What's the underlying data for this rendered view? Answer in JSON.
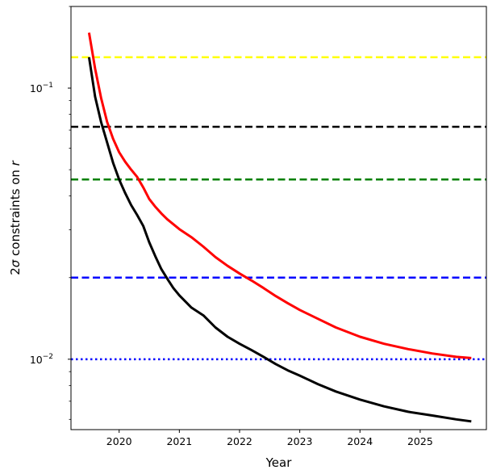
{
  "chart_data": {
    "type": "line",
    "title": "",
    "xlabel": "Year",
    "ylabel_prefix": "2",
    "ylabel_sigma": "σ",
    "ylabel_middle": " constraints on ",
    "ylabel_var": "r",
    "xlim": [
      2019.2,
      2026.1
    ],
    "ylim": [
      0.0055,
      0.2
    ],
    "yscale": "log",
    "grid": false,
    "x_ticks": [
      {
        "value": 2020,
        "label": "2020"
      },
      {
        "value": 2021,
        "label": "2021"
      },
      {
        "value": 2022,
        "label": "2022"
      },
      {
        "value": 2023,
        "label": "2023"
      },
      {
        "value": 2024,
        "label": "2024"
      },
      {
        "value": 2025,
        "label": "2025"
      }
    ],
    "y_ticks": [
      {
        "value": 0.01,
        "base": "10",
        "exp": "−2"
      },
      {
        "value": 0.1,
        "base": "10",
        "exp": "−1"
      }
    ],
    "series": [
      {
        "color": "#ff0000",
        "style": "solid",
        "x": [
          2019.5,
          2019.6,
          2019.7,
          2019.8,
          2019.9,
          2020.0,
          2020.1,
          2020.2,
          2020.3,
          2020.4,
          2020.5,
          2020.6,
          2020.7,
          2020.8,
          2021.0,
          2021.2,
          2021.4,
          2021.6,
          2021.8,
          2022.0,
          2022.2,
          2022.4,
          2022.6,
          2022.8,
          2023.0,
          2023.3,
          2023.6,
          2024.0,
          2024.4,
          2024.8,
          2025.2,
          2025.6,
          2025.85
        ],
        "values": [
          0.16,
          0.118,
          0.092,
          0.075,
          0.065,
          0.058,
          0.0535,
          0.05,
          0.047,
          0.043,
          0.039,
          0.0365,
          0.0345,
          0.0328,
          0.0302,
          0.0282,
          0.026,
          0.0238,
          0.0221,
          0.0207,
          0.0195,
          0.0183,
          0.0171,
          0.0161,
          0.0152,
          0.0141,
          0.0131,
          0.0121,
          0.0114,
          0.0109,
          0.0105,
          0.0102,
          0.0101
        ]
      },
      {
        "color": "#000000",
        "style": "solid",
        "x": [
          2019.5,
          2019.6,
          2019.7,
          2019.8,
          2019.9,
          2020.0,
          2020.1,
          2020.2,
          2020.3,
          2020.4,
          2020.5,
          2020.6,
          2020.7,
          2020.8,
          2020.9,
          2021.0,
          2021.2,
          2021.4,
          2021.6,
          2021.8,
          2022.0,
          2022.2,
          2022.4,
          2022.6,
          2022.8,
          2023.0,
          2023.3,
          2023.6,
          2024.0,
          2024.4,
          2024.8,
          2025.2,
          2025.6,
          2025.85
        ],
        "values": [
          0.13,
          0.093,
          0.075,
          0.063,
          0.053,
          0.046,
          0.041,
          0.037,
          0.034,
          0.031,
          0.027,
          0.024,
          0.0215,
          0.0198,
          0.0183,
          0.0172,
          0.0155,
          0.0145,
          0.0131,
          0.0121,
          0.0114,
          0.0108,
          0.0102,
          0.0096,
          0.0091,
          0.0087,
          0.0081,
          0.0076,
          0.0071,
          0.0067,
          0.0064,
          0.0062,
          0.006,
          0.0059
        ]
      }
    ],
    "hlines": [
      {
        "y": 0.13,
        "color": "#ffff00",
        "style": "dashed"
      },
      {
        "y": 0.072,
        "color": "#000000",
        "style": "dashed"
      },
      {
        "y": 0.046,
        "color": "#008000",
        "style": "dashed"
      },
      {
        "y": 0.02,
        "color": "#0000ff",
        "style": "dashed"
      },
      {
        "y": 0.01,
        "color": "#0000ff",
        "style": "dotted"
      }
    ]
  }
}
